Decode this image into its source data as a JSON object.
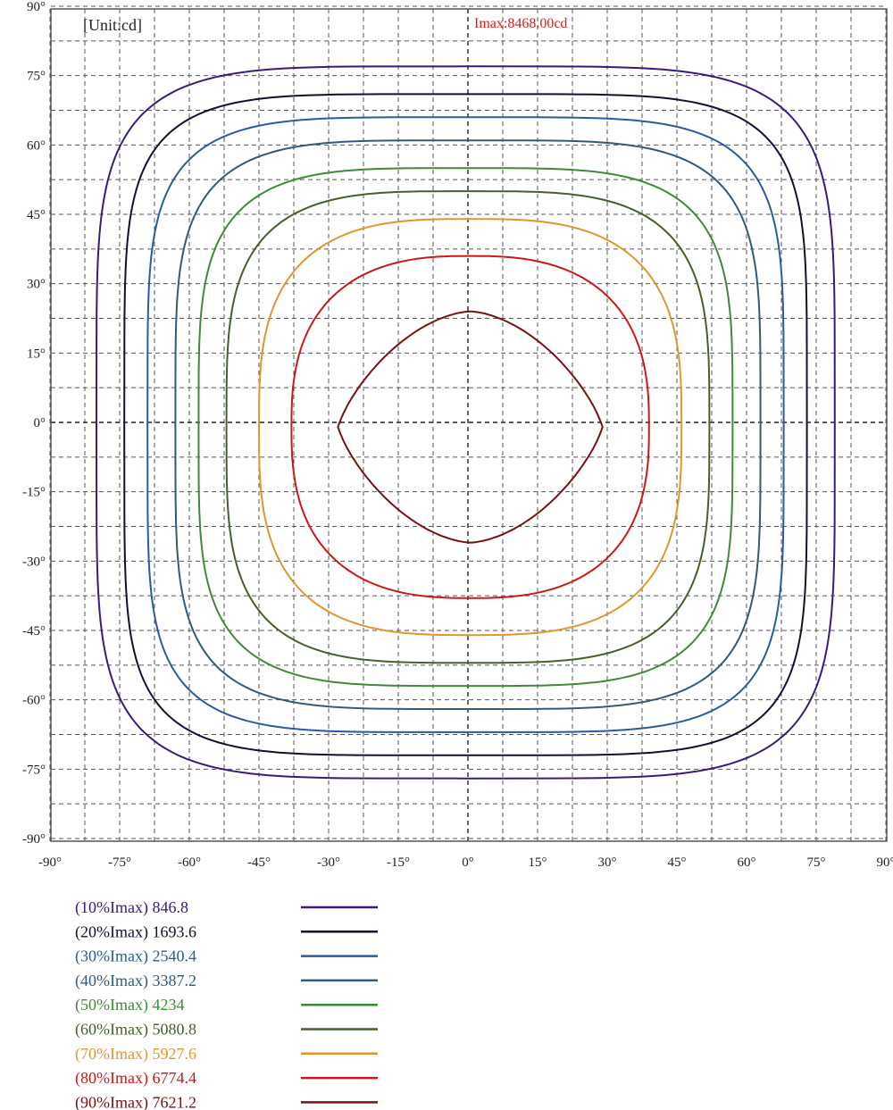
{
  "chart_data": {
    "type": "contour",
    "unit_label": "[Unit:cd]",
    "imax_label": "Imax:8468.00cd",
    "imax": 8468.0,
    "x_ticks": [
      "-90°",
      "-75°",
      "-60°",
      "-45°",
      "-30°",
      "-15°",
      "0°",
      "15°",
      "30°",
      "45°",
      "60°",
      "75°",
      "90°"
    ],
    "y_ticks": [
      "90°",
      "75°",
      "60°",
      "45°",
      "30°",
      "15°",
      "0°",
      "-15°",
      "-30°",
      "-45°",
      "-60°",
      "-75°",
      "-90°"
    ],
    "xlim": [
      -90,
      90
    ],
    "ylim": [
      -90,
      90
    ],
    "grid": true,
    "legend_position": "bottom-left",
    "series": [
      {
        "name": "(10%Imax) 846.8",
        "percent": 10,
        "value": 846.8,
        "color": "#3b1a7a",
        "x_extent": [
          -80,
          79
        ],
        "y_extent": [
          -77,
          77
        ],
        "squareness": 5.0
      },
      {
        "name": "(20%Imax) 1693.6",
        "percent": 20,
        "value": 1693.6,
        "color": "#111133",
        "x_extent": [
          -74,
          73
        ],
        "y_extent": [
          -72,
          71
        ],
        "squareness": 5.2
      },
      {
        "name": "(30%Imax) 2540.4",
        "percent": 30,
        "value": 2540.4,
        "color": "#2c5aa0",
        "x_extent": [
          -69,
          68
        ],
        "y_extent": [
          -67,
          66
        ],
        "squareness": 4.8
      },
      {
        "name": "(40%Imax) 3387.2",
        "percent": 40,
        "value": 3387.2,
        "color": "#335a77",
        "x_extent": [
          -63,
          63
        ],
        "y_extent": [
          -62,
          61
        ],
        "squareness": 4.4
      },
      {
        "name": "(50%Imax) 4234",
        "percent": 50,
        "value": 4234,
        "color": "#3f8a3a",
        "x_extent": [
          -58,
          57
        ],
        "y_extent": [
          -57,
          55
        ],
        "squareness": 4.0
      },
      {
        "name": "(60%Imax) 5080.8",
        "percent": 60,
        "value": 5080.8,
        "color": "#46602a",
        "x_extent": [
          -52,
          52
        ],
        "y_extent": [
          -52,
          50
        ],
        "squareness": 3.6
      },
      {
        "name": "(70%Imax) 5927.6",
        "percent": 70,
        "value": 5927.6,
        "color": "#e0962e",
        "x_extent": [
          -45,
          46
        ],
        "y_extent": [
          -46,
          44
        ],
        "squareness": 3.0
      },
      {
        "name": "(80%Imax) 6774.4",
        "percent": 80,
        "value": 6774.4,
        "color": "#cc1818",
        "x_extent": [
          -38,
          39
        ],
        "y_extent": [
          -38,
          36
        ],
        "squareness": 2.6
      },
      {
        "name": "(90%Imax) 7621.2",
        "percent": 90,
        "value": 7621.2,
        "color": "#7a1010",
        "x_extent": [
          -28,
          29
        ],
        "y_extent": [
          -26,
          24
        ],
        "squareness": 1.6
      }
    ]
  }
}
